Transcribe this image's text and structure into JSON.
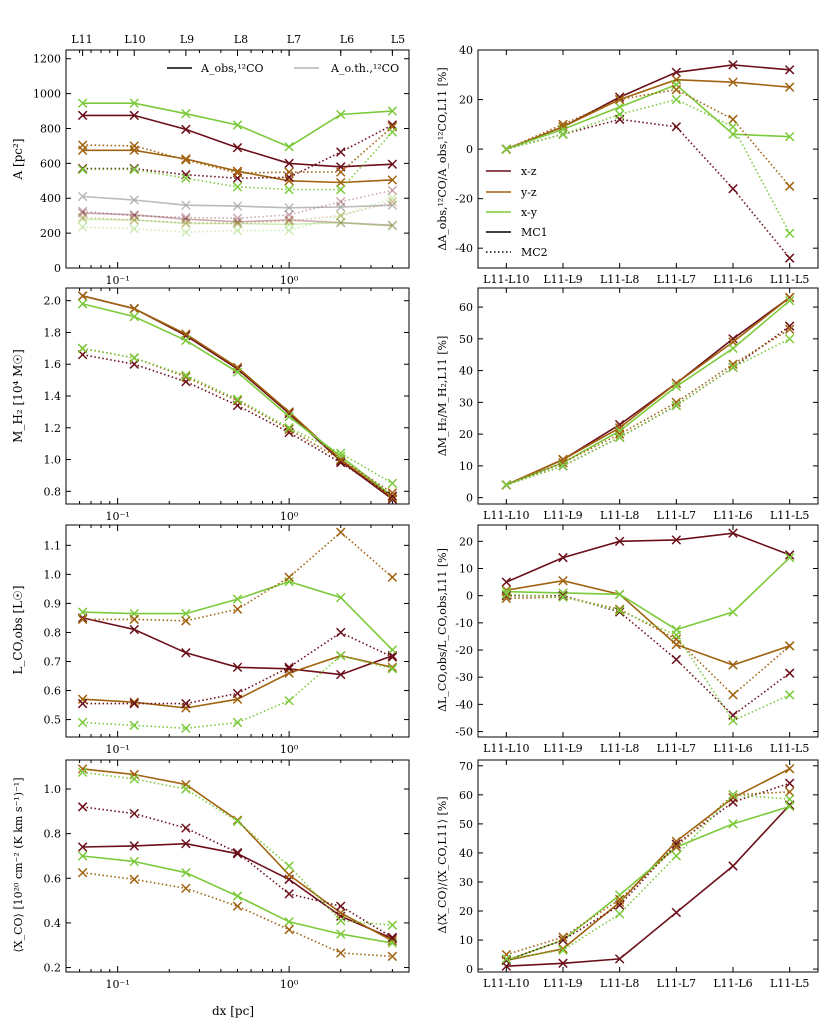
{
  "colors": {
    "xz": "#6b0f1a",
    "yz": "#a0620f",
    "xy": "#7cca3c",
    "gray": "#aaaaaa"
  },
  "labels": {
    "top_levels": [
      "L11",
      "L10",
      "L9",
      "L8",
      "L7",
      "L6",
      "L5"
    ],
    "bottom_xlabel": "dx [pc]",
    "y_A": "A [pc²]",
    "y_M": "M_H₂ [10⁴ M☉]",
    "y_L": "L_CO,obs [L☉]",
    "y_X": "⟨X_CO⟩ [10²⁰ cm⁻² (K km s⁻¹)⁻¹]",
    "y_dA": "ΔA_obs,¹²CO/A_obs,¹²CO,L11 [%]",
    "y_dM": "ΔM_H₂/M_H₂,L11 [%]",
    "y_dL": "ΔL_CO,obs/L_CO,obs,L11 [%]",
    "y_dX": "Δ⟨X_CO⟩/⟨X_CO,L11⟩ [%]",
    "legend_A_obs": "A_obs,¹²CO",
    "legend_A_oth": "A_o.th.,¹²CO",
    "legend_xz": "x-z",
    "legend_yz": "y-z",
    "legend_xy": "x-y",
    "legend_mc1": "MC1",
    "legend_mc2": "MC2"
  },
  "chart_data": [
    {
      "id": "A",
      "type": "line",
      "xlabel": "dx [pc]",
      "ylabel": "A [pc²]",
      "xscale": "log",
      "x": [
        0.0625,
        0.125,
        0.25,
        0.5,
        1,
        2,
        4
      ],
      "xlim": [
        0.05,
        5
      ],
      "ylim": [
        0,
        1250
      ],
      "yticks": [
        0,
        200,
        400,
        600,
        800,
        1000,
        1200
      ],
      "xtick_labels": [
        "10⁻¹",
        "10⁰"
      ],
      "top_tick_labels": [
        "L11",
        "L10",
        "L9",
        "L8",
        "L7",
        "L6",
        "L5"
      ],
      "series": [
        {
          "color": "xz",
          "style": "solid",
          "alpha": 1,
          "values": [
            875,
            875,
            795,
            690,
            600,
            580,
            595
          ]
        },
        {
          "color": "yz",
          "style": "solid",
          "alpha": 1,
          "values": [
            675,
            675,
            625,
            555,
            500,
            490,
            505
          ]
        },
        {
          "color": "xy",
          "style": "solid",
          "alpha": 1,
          "values": [
            945,
            945,
            885,
            820,
            695,
            880,
            900
          ]
        },
        {
          "color": "xz",
          "style": "dotted",
          "alpha": 1,
          "values": [
            570,
            570,
            535,
            515,
            520,
            665,
            820
          ]
        },
        {
          "color": "yz",
          "style": "dotted",
          "alpha": 1,
          "values": [
            705,
            700,
            620,
            545,
            550,
            550,
            810
          ]
        },
        {
          "color": "xy",
          "style": "dotted",
          "alpha": 1,
          "values": [
            565,
            565,
            515,
            465,
            450,
            450,
            780
          ]
        },
        {
          "color": "gray",
          "style": "solid",
          "alpha": 0.8,
          "values": [
            410,
            390,
            360,
            355,
            345,
            350,
            360
          ]
        },
        {
          "color": "xz",
          "style": "solid",
          "alpha": 0.35,
          "values": [
            315,
            305,
            280,
            265,
            275,
            260,
            245
          ]
        },
        {
          "color": "xy",
          "style": "solid",
          "alpha": 0.35,
          "values": [
            280,
            275,
            255,
            255,
            250,
            260,
            240
          ]
        },
        {
          "color": "xz",
          "style": "dotted",
          "alpha": 0.35,
          "values": [
            325,
            300,
            290,
            285,
            305,
            380,
            445
          ]
        },
        {
          "color": "yz",
          "style": "dotted",
          "alpha": 0.35,
          "values": [
            290,
            275,
            260,
            255,
            270,
            300,
            380
          ]
        },
        {
          "color": "xy",
          "style": "dotted",
          "alpha": 0.35,
          "values": [
            235,
            225,
            205,
            215,
            215,
            300,
            400
          ]
        }
      ]
    },
    {
      "id": "dA",
      "type": "line",
      "ylabel": "ΔA_obs,¹²CO/A_obs,¹²CO,L11 [%]",
      "categories": [
        "L11-L10",
        "L11-L9",
        "L11-L8",
        "L11-L7",
        "L11-L6",
        "L11-L5"
      ],
      "ylim": [
        -48,
        40
      ],
      "yticks": [
        -40,
        -20,
        0,
        20,
        40
      ],
      "series": [
        {
          "name": "x-z",
          "color": "xz",
          "style": "solid",
          "values": [
            0,
            9,
            21,
            31,
            34,
            32
          ]
        },
        {
          "name": "y-z",
          "color": "yz",
          "style": "solid",
          "values": [
            0,
            9,
            20,
            28,
            27,
            25
          ]
        },
        {
          "name": "x-y",
          "color": "xy",
          "style": "solid",
          "values": [
            0,
            8,
            17,
            26,
            6,
            5
          ]
        },
        {
          "color": "xz",
          "style": "dotted",
          "values": [
            0,
            6,
            12,
            9,
            -16,
            -44
          ]
        },
        {
          "color": "yz",
          "style": "dotted",
          "values": [
            0,
            10,
            20,
            24,
            12,
            -15
          ]
        },
        {
          "color": "xy",
          "style": "dotted",
          "values": [
            0,
            6,
            14,
            20,
            9,
            -34
          ]
        }
      ]
    },
    {
      "id": "M",
      "type": "line",
      "ylabel": "M_H₂ [10⁴ M☉]",
      "xscale": "log",
      "x": [
        0.0625,
        0.125,
        0.25,
        0.5,
        1,
        2,
        4
      ],
      "xlim": [
        0.05,
        5
      ],
      "ylim": [
        0.72,
        2.08
      ],
      "yticks": [
        0.8,
        1.0,
        1.2,
        1.4,
        1.6,
        1.8,
        2.0
      ],
      "ytick_labels": [
        "0.8",
        "1.0",
        "1.2",
        "1.4",
        "1.6",
        "1.8",
        "2.0"
      ],
      "xtick_labels": [
        "10⁻¹",
        "10⁰"
      ],
      "series": [
        {
          "color": "xz",
          "style": "solid",
          "alpha": 1,
          "values": [
            2.03,
            1.95,
            1.78,
            1.57,
            1.29,
            0.99,
            0.75
          ]
        },
        {
          "color": "yz",
          "style": "solid",
          "alpha": 1,
          "values": [
            2.03,
            1.95,
            1.79,
            1.58,
            1.3,
            1.0,
            0.76
          ]
        },
        {
          "color": "xy",
          "style": "solid",
          "alpha": 1,
          "values": [
            1.98,
            1.9,
            1.75,
            1.55,
            1.27,
            1.02,
            0.77
          ]
        },
        {
          "color": "xz",
          "style": "dotted",
          "alpha": 1,
          "values": [
            1.66,
            1.6,
            1.49,
            1.34,
            1.17,
            0.98,
            0.77
          ]
        },
        {
          "color": "yz",
          "style": "dotted",
          "alpha": 1,
          "values": [
            1.7,
            1.64,
            1.52,
            1.37,
            1.19,
            1.0,
            0.79
          ]
        },
        {
          "color": "xy",
          "style": "dotted",
          "alpha": 1,
          "values": [
            1.7,
            1.64,
            1.53,
            1.38,
            1.2,
            1.04,
            0.85
          ]
        }
      ]
    },
    {
      "id": "dM",
      "type": "line",
      "ylabel": "ΔM_H₂/M_H₂,L11 [%]",
      "categories": [
        "L11-L10",
        "L11-L9",
        "L11-L8",
        "L11-L7",
        "L11-L6",
        "L11-L5"
      ],
      "ylim": [
        -2,
        66
      ],
      "yticks": [
        0,
        10,
        20,
        30,
        40,
        50,
        60
      ],
      "series": [
        {
          "color": "xz",
          "style": "solid",
          "values": [
            4,
            12,
            23,
            36,
            50,
            63
          ]
        },
        {
          "color": "yz",
          "style": "solid",
          "values": [
            4,
            12,
            22,
            36,
            49,
            63
          ]
        },
        {
          "color": "xy",
          "style": "solid",
          "values": [
            4,
            11,
            21,
            35,
            47,
            62
          ]
        },
        {
          "color": "xz",
          "style": "dotted",
          "values": [
            4,
            10,
            19,
            29,
            41,
            54
          ]
        },
        {
          "color": "yz",
          "style": "dotted",
          "values": [
            4,
            11,
            20,
            30,
            42,
            53
          ]
        },
        {
          "color": "xy",
          "style": "dotted",
          "values": [
            4,
            10,
            19,
            29,
            41,
            50
          ]
        }
      ]
    },
    {
      "id": "L",
      "type": "line",
      "ylabel": "L_CO,obs [L☉]",
      "xscale": "log",
      "x": [
        0.0625,
        0.125,
        0.25,
        0.5,
        1,
        2,
        4
      ],
      "xlim": [
        0.05,
        5
      ],
      "ylim": [
        0.44,
        1.17
      ],
      "yticks": [
        0.5,
        0.6,
        0.7,
        0.8,
        0.9,
        1.0,
        1.1
      ],
      "ytick_labels": [
        "0.5",
        "0.6",
        "0.7",
        "0.8",
        "0.9",
        "1.0",
        "1.1"
      ],
      "xtick_labels": [
        "10⁻¹",
        "10⁰"
      ],
      "series": [
        {
          "color": "xz",
          "style": "solid",
          "alpha": 1,
          "values": [
            0.85,
            0.81,
            0.73,
            0.68,
            0.675,
            0.655,
            0.72
          ]
        },
        {
          "color": "yz",
          "style": "solid",
          "alpha": 1,
          "values": [
            0.57,
            0.56,
            0.54,
            0.57,
            0.66,
            0.72,
            0.68
          ]
        },
        {
          "color": "xy",
          "style": "solid",
          "alpha": 1,
          "values": [
            0.87,
            0.865,
            0.865,
            0.915,
            0.975,
            0.92,
            0.74
          ]
        },
        {
          "color": "xz",
          "style": "dotted",
          "alpha": 1,
          "values": [
            0.555,
            0.555,
            0.555,
            0.59,
            0.68,
            0.8,
            0.715
          ]
        },
        {
          "color": "yz",
          "style": "dotted",
          "alpha": 1,
          "values": [
            0.845,
            0.845,
            0.84,
            0.88,
            0.99,
            1.145,
            0.99
          ]
        },
        {
          "color": "xy",
          "style": "dotted",
          "alpha": 1,
          "values": [
            0.49,
            0.48,
            0.47,
            0.49,
            0.565,
            0.72,
            0.675
          ]
        }
      ]
    },
    {
      "id": "dL",
      "type": "line",
      "ylabel": "ΔL_CO,obs/L_CO,obs,L11 [%]",
      "categories": [
        "L11-L10",
        "L11-L9",
        "L11-L8",
        "L11-L7",
        "L11-L6",
        "L11-L5"
      ],
      "ylim": [
        -52,
        26
      ],
      "yticks": [
        -50,
        -40,
        -30,
        -20,
        -10,
        0,
        10,
        20
      ],
      "series": [
        {
          "color": "xz",
          "style": "solid",
          "values": [
            5,
            14,
            20,
            20.5,
            23,
            15
          ]
        },
        {
          "color": "yz",
          "style": "solid",
          "values": [
            2,
            5.5,
            0.5,
            -18,
            -25.5,
            -18.5
          ]
        },
        {
          "color": "xy",
          "style": "solid",
          "values": [
            1.5,
            1,
            0.5,
            -12.5,
            -6,
            14
          ]
        },
        {
          "color": "xz",
          "style": "dotted",
          "values": [
            0,
            0,
            -6,
            -23.5,
            -44,
            -28.5
          ]
        },
        {
          "color": "yz",
          "style": "dotted",
          "values": [
            -1,
            -0.5,
            -5,
            -16,
            -36.5,
            -18.5
          ]
        },
        {
          "color": "xy",
          "style": "dotted",
          "values": [
            0.5,
            -0.5,
            -5.5,
            -14.5,
            -46,
            -36.5
          ]
        }
      ]
    },
    {
      "id": "X",
      "type": "line",
      "ylabel": "⟨X_CO⟩ [10²⁰ cm⁻² (K km s⁻¹)⁻¹]",
      "xlabel": "dx [pc]",
      "xscale": "log",
      "x": [
        0.0625,
        0.125,
        0.25,
        0.5,
        1,
        2,
        4
      ],
      "xlim": [
        0.05,
        5
      ],
      "ylim": [
        0.18,
        1.13
      ],
      "yticks": [
        0.2,
        0.4,
        0.6,
        0.8,
        1.0
      ],
      "ytick_labels": [
        "0.2",
        "0.4",
        "0.6",
        "0.8",
        "1.0"
      ],
      "xtick_labels": [
        "10⁻¹",
        "10⁰"
      ],
      "series": [
        {
          "color": "xz",
          "style": "solid",
          "alpha": 1,
          "values": [
            0.74,
            0.745,
            0.755,
            0.71,
            0.595,
            0.43,
            0.33
          ]
        },
        {
          "color": "yz",
          "style": "solid",
          "alpha": 1,
          "values": [
            1.09,
            1.065,
            1.02,
            0.86,
            0.615,
            0.445,
            0.32
          ]
        },
        {
          "color": "xy",
          "style": "solid",
          "alpha": 1,
          "values": [
            0.7,
            0.675,
            0.625,
            0.52,
            0.405,
            0.35,
            0.31
          ]
        },
        {
          "color": "xz",
          "style": "dotted",
          "alpha": 1,
          "values": [
            0.92,
            0.89,
            0.825,
            0.715,
            0.53,
            0.475,
            0.335
          ]
        },
        {
          "color": "yz",
          "style": "dotted",
          "alpha": 1,
          "values": [
            0.625,
            0.595,
            0.555,
            0.475,
            0.37,
            0.265,
            0.25
          ]
        },
        {
          "color": "xy",
          "style": "dotted",
          "alpha": 1,
          "values": [
            1.075,
            1.045,
            1.0,
            0.855,
            0.655,
            0.41,
            0.39
          ]
        }
      ]
    },
    {
      "id": "dX",
      "type": "line",
      "ylabel": "Δ⟨X_CO⟩/⟨X_CO,L11⟩ [%]",
      "categories": [
        "L11-L10",
        "L11-L9",
        "L11-L8",
        "L11-L7",
        "L11-L6",
        "L11-L5"
      ],
      "ylim": [
        -1,
        72
      ],
      "yticks": [
        0,
        10,
        20,
        30,
        40,
        50,
        60,
        70
      ],
      "series": [
        {
          "color": "xz",
          "style": "solid",
          "values": [
            1,
            2,
            3.5,
            19.5,
            35.5,
            56.5
          ]
        },
        {
          "color": "yz",
          "style": "solid",
          "values": [
            3,
            7,
            23,
            44,
            59,
            69
          ]
        },
        {
          "color": "xy",
          "style": "solid",
          "values": [
            3,
            10,
            25.5,
            42,
            50,
            56
          ]
        },
        {
          "color": "xz",
          "style": "dotted",
          "values": [
            3,
            10,
            22,
            43,
            57.5,
            64
          ]
        },
        {
          "color": "yz",
          "style": "dotted",
          "values": [
            5,
            11,
            24,
            42,
            60,
            61
          ]
        },
        {
          "color": "xy",
          "style": "dotted",
          "values": [
            3.5,
            6.5,
            19,
            39,
            60,
            58.5
          ]
        }
      ]
    }
  ]
}
